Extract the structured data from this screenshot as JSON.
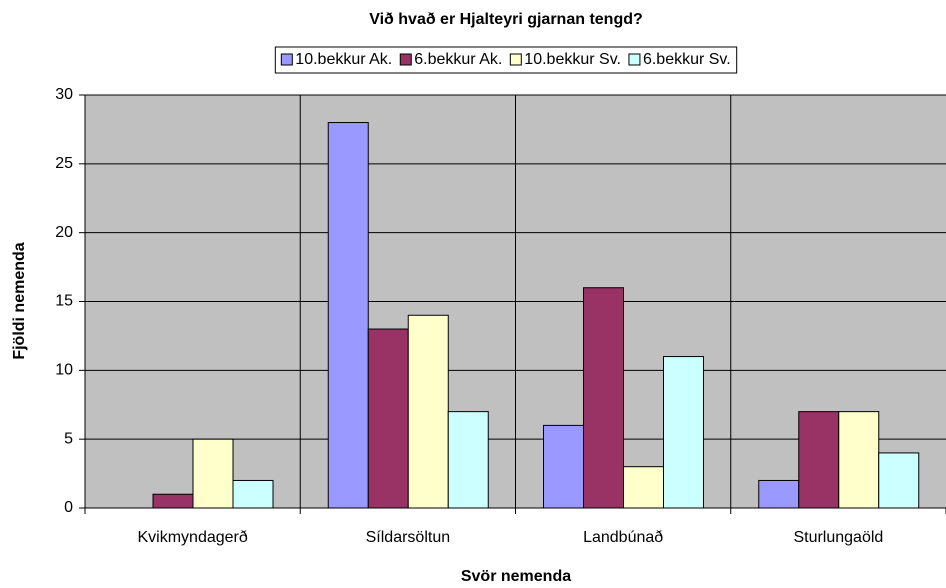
{
  "chart_data": {
    "type": "bar",
    "title": "Við hvað er Hjalteyri gjarnan tengd?",
    "x_label": "Svör nemenda",
    "y_label": "Fjöldi nemenda",
    "categories": [
      "Kvikmyndagerð",
      "Síldarsöltun",
      "Landbúnað",
      "Sturlungaöld"
    ],
    "series": [
      {
        "name": "10.bekkur Ak.",
        "color": "#9999ff",
        "values": [
          0,
          28,
          6,
          2
        ]
      },
      {
        "name": "6.bekkur Ak.",
        "color": "#993366",
        "values": [
          1,
          13,
          16,
          7
        ]
      },
      {
        "name": "10.bekkur Sv.",
        "color": "#ffffcc",
        "values": [
          5,
          14,
          3,
          7
        ]
      },
      {
        "name": "6.bekkur Sv.",
        "color": "#ccffff",
        "values": [
          2,
          7,
          11,
          4
        ]
      }
    ],
    "ylim": [
      0,
      30
    ],
    "yticks": [
      0,
      5,
      10,
      15,
      20,
      25,
      30
    ],
    "grid": true,
    "legend": "top"
  }
}
